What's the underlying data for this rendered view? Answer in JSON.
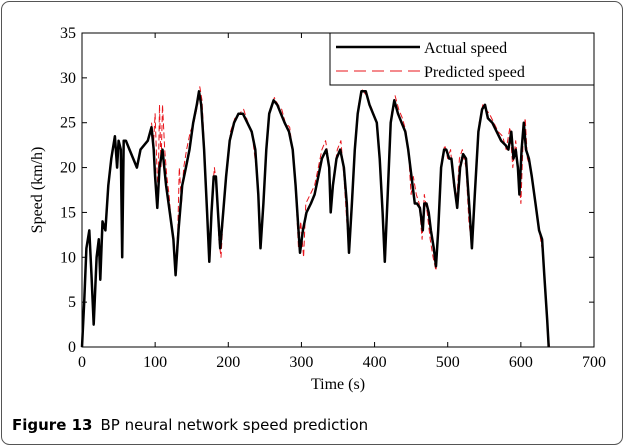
{
  "chart_data": {
    "type": "line",
    "xlabel": "Time (s)",
    "ylabel": "Speed (km/h)",
    "xlim": [
      0,
      700
    ],
    "xticks": [
      0,
      100,
      200,
      300,
      400,
      500,
      600,
      700
    ],
    "ylim": [
      0,
      35
    ],
    "yticks": [
      0,
      5,
      10,
      15,
      20,
      25,
      30,
      35
    ],
    "legend": "upper right",
    "series": [
      {
        "name": "Actual speed",
        "color": "#000000",
        "style": "solid",
        "x": [
          0,
          3,
          6,
          10,
          13,
          16,
          20,
          23,
          25,
          28,
          32,
          36,
          40,
          45,
          48,
          50,
          53,
          55,
          57,
          60,
          65,
          70,
          75,
          80,
          90,
          95,
          98,
          100,
          103,
          106,
          110,
          115,
          120,
          125,
          128,
          132,
          137,
          142,
          147,
          152,
          157,
          160,
          163,
          167,
          171,
          174,
          177,
          180,
          183,
          186,
          189,
          193,
          197,
          202,
          208,
          214,
          220,
          226,
          232,
          237,
          241,
          244,
          248,
          252,
          256,
          262,
          267,
          272,
          277,
          283,
          288,
          292,
          296,
          298,
          302,
          307,
          313,
          318,
          323,
          328,
          334,
          338,
          340,
          343,
          348,
          353,
          358,
          362,
          365,
          369,
          373,
          377,
          382,
          388,
          393,
          398,
          403,
          407,
          411,
          414,
          418,
          422,
          427,
          432,
          437,
          442,
          446,
          449,
          452,
          455,
          458,
          462,
          466,
          468,
          471,
          474,
          477,
          481,
          484,
          487,
          491,
          495,
          498,
          502,
          505,
          509,
          513,
          517,
          521,
          525,
          530,
          533,
          537,
          542,
          547,
          551,
          555,
          561,
          567,
          573,
          579,
          583,
          587,
          590,
          593,
          596,
          598,
          601,
          604,
          607,
          611,
          615,
          620,
          625,
          629,
          632,
          636,
          638
        ],
        "values": [
          0,
          5,
          11,
          13,
          8,
          2.5,
          10,
          12,
          7.5,
          14,
          13,
          18,
          21,
          23.5,
          20,
          23,
          22,
          10,
          23,
          23,
          22,
          21,
          20,
          22,
          23,
          24.5,
          22,
          19,
          15.5,
          20,
          22,
          18,
          15,
          12,
          8,
          13,
          18,
          20,
          22,
          25,
          27,
          28.5,
          27,
          22,
          15,
          9.5,
          15,
          19,
          19,
          15,
          11,
          15,
          19,
          23,
          25,
          26,
          26,
          25,
          24,
          22,
          17,
          11,
          16,
          22,
          26,
          27.5,
          27,
          26,
          25,
          24,
          22,
          18,
          13,
          10.5,
          13,
          15,
          16,
          17,
          19,
          21,
          22,
          20,
          15,
          18,
          21,
          22,
          20,
          16,
          10.5,
          16,
          22,
          26,
          28.5,
          28.5,
          27,
          26,
          25,
          21,
          15,
          9.5,
          17,
          25,
          27.5,
          26,
          25,
          24,
          22,
          20,
          18,
          16,
          16,
          15.5,
          13,
          16,
          16,
          15,
          13,
          11,
          9,
          13,
          20,
          22,
          22,
          21,
          21,
          18,
          15.5,
          20,
          21.5,
          21,
          15,
          11,
          17,
          24,
          26.5,
          27,
          25.5,
          25,
          24,
          23,
          22.5,
          22,
          24,
          21,
          22,
          20,
          17,
          22,
          25,
          22,
          21,
          19,
          16,
          13,
          12,
          8,
          3,
          0
        ]
      },
      {
        "name": "Predicted speed",
        "color": "#e8141b",
        "style": "dashed",
        "x": [
          95,
          98,
          100,
          102,
          104,
          106,
          108,
          110,
          113,
          116,
          119,
          122,
          125,
          128,
          131,
          133,
          136,
          139,
          143,
          148,
          153,
          158,
          161,
          164,
          168,
          172,
          175,
          178,
          181,
          184,
          187,
          190,
          194,
          198,
          203,
          209,
          215,
          221,
          227,
          233,
          238,
          242,
          245,
          249,
          253,
          257,
          263,
          268,
          273,
          278,
          284,
          289,
          293,
          296,
          299,
          303,
          306,
          312,
          318,
          323,
          328,
          333,
          337,
          340,
          344,
          349,
          354,
          358,
          362,
          365,
          369,
          374,
          378,
          383,
          389,
          394,
          399,
          404,
          408,
          412,
          415,
          419,
          423,
          428,
          433,
          438,
          443,
          447,
          450,
          453,
          457,
          461,
          465,
          468,
          472,
          476,
          480,
          484,
          488,
          492,
          496,
          500,
          504,
          508,
          512,
          516,
          520,
          525,
          529,
          533,
          538,
          543,
          548,
          552,
          557,
          563,
          569,
          575,
          580,
          585,
          589,
          593,
          597,
          600,
          603,
          606,
          609,
          613,
          617,
          622,
          627,
          631,
          634,
          637,
          639
        ],
        "values": [
          25,
          23,
          26,
          21,
          17,
          27,
          20,
          27,
          22,
          19,
          17,
          14,
          12,
          9,
          13,
          20,
          16,
          20,
          22,
          24,
          25,
          27,
          29,
          27.5,
          21,
          13,
          10,
          17,
          20,
          18,
          12,
          10,
          16,
          20,
          24,
          25.5,
          26,
          26.5,
          25,
          23.5,
          20,
          15,
          11.5,
          17,
          23,
          26.5,
          27.8,
          27,
          26.5,
          25,
          24.5,
          21,
          16,
          11,
          14,
          10,
          16,
          17,
          18,
          20,
          22,
          23,
          21,
          16,
          19,
          22,
          23,
          19,
          14,
          11,
          17,
          23,
          27,
          28.7,
          28,
          27,
          26,
          24.5,
          20,
          13,
          10,
          19,
          26,
          28,
          26.5,
          25.5,
          24,
          21,
          17,
          19,
          17,
          16,
          12,
          17,
          15,
          12,
          10,
          8.5,
          14,
          21,
          22.5,
          21,
          22,
          18,
          16,
          21,
          22,
          20,
          14,
          11,
          18,
          25,
          27,
          26.5,
          26,
          25,
          24,
          23.5,
          22,
          24.5,
          20,
          23,
          19,
          16,
          23,
          25.5,
          21,
          20,
          18,
          15,
          12,
          10,
          6,
          2,
          0
        ]
      }
    ]
  },
  "caption": {
    "label": "Figure 13",
    "text": "BP neural network speed prediction"
  }
}
